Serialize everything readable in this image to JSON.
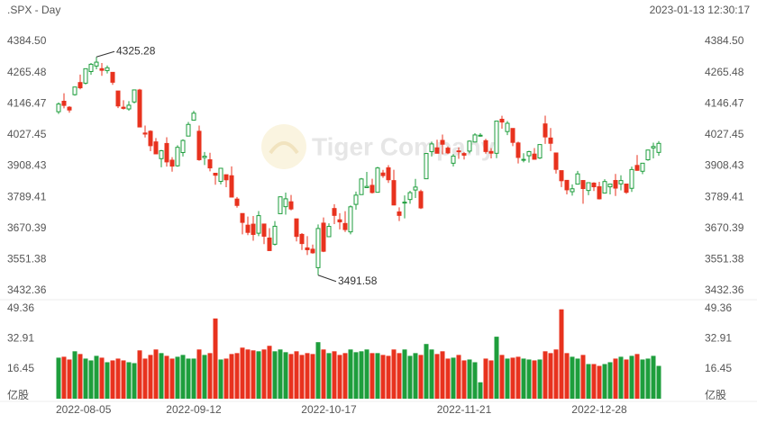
{
  "chart_data": {
    "type": "candlestick",
    "title": ".SPX - Day",
    "timestamp": "2023-01-13 12:30:17",
    "watermark": "Tiger Company",
    "volume_unit": "亿股",
    "up_color": "#1e9e3c",
    "down_color": "#e8321e",
    "categories": [
      "2022-08-05",
      null,
      null,
      null,
      null,
      null,
      null,
      null,
      null,
      null,
      null,
      null,
      null,
      null,
      null,
      null,
      null,
      null,
      null,
      null,
      null,
      null,
      null,
      null,
      null,
      "2022-09-12",
      null,
      null,
      null,
      null,
      null,
      null,
      null,
      null,
      null,
      null,
      null,
      null,
      null,
      null,
      null,
      null,
      null,
      null,
      null,
      null,
      null,
      null,
      null,
      null,
      "2022-10-17",
      null,
      null,
      null,
      null,
      null,
      null,
      null,
      null,
      null,
      null,
      null,
      null,
      null,
      null,
      null,
      null,
      null,
      null,
      null,
      null,
      null,
      null,
      null,
      null,
      "2022-11-21",
      null,
      null,
      null,
      null,
      null,
      null,
      null,
      null,
      null,
      null,
      null,
      null,
      null,
      null,
      null,
      null,
      null,
      null,
      null,
      null,
      null,
      null,
      null,
      null,
      "2022-12-28",
      null,
      null,
      null,
      null,
      null,
      null,
      null,
      null,
      null,
      null,
      null
    ],
    "open": [
      4115.87,
      4155.93,
      4133.11,
      4181.02,
      4227.4,
      4225.02,
      4269.37,
      4290.46,
      4280.4,
      4273.13,
      4266.31,
      4195.08,
      4133.09,
      4126.55,
      4153.26,
      4198.74,
      4034.58,
      4041.25,
      4000.67,
      3936.73,
      3994.66,
      3930.89,
      3909.43,
      3959.94,
      4022.94,
      4083.67,
      4041.25,
      3940.73,
      3932.41,
      3880.95,
      3849.91,
      3875.23,
      3871.4,
      3782.36,
      3727.14,
      3682.72,
      3686.44,
      3651.94,
      3687.01,
      3633.48,
      3609.78,
      3726.46,
      3753.25,
      3771.97,
      3706.74,
      3647.51,
      3595.86,
      3590.83,
      3520.37,
      3690.41,
      3638.65,
      3746.26,
      3703.11,
      3689.05,
      3657.1,
      3762.01,
      3799.44,
      3825.97,
      3834.69,
      3808.26,
      3881.85,
      3901.79,
      3852.9,
      3733.25,
      3766.98,
      3780.71,
      3817.02,
      3810.94,
      3859.89,
      3963.72,
      3977.97,
      4006.41,
      3976.82,
      3919.26,
      3966.39,
      3956.23,
      3965.51,
      4000.3,
      4023.34,
      4005.36,
      3964.19,
      3957.18,
      4087.14,
      4040.17,
      4052.02,
      3996.63,
      3933.28,
      3947.79,
      3954.17,
      3939.29,
      4069.38,
      4015.54,
      3958.37,
      3890.91,
      3853.79,
      3810.47,
      3839.49,
      3853.26,
      3815.11,
      3843.34,
      3829.56,
      3805.45,
      3829.06,
      3853.29,
      3840.36,
      3839.74,
      3823.37,
      3910.82,
      3888.57,
      3932.35,
      3977.57,
      3960.6
    ],
    "high": [
      4151.58,
      4186.62,
      4137.3,
      4211.03,
      4257.91,
      4280.47,
      4301.79,
      4325.28,
      4302.18,
      4292.53,
      4266.31,
      4195.08,
      4159.77,
      4156.56,
      4200.54,
      4203.04,
      4062.99,
      4044.98,
      4015.37,
      3970.23,
      4018.43,
      3942.55,
      3987.89,
      4010.5,
      4076.81,
      4119.28,
      4062.99,
      3961.94,
      3959.14,
      3880.95,
      3900.45,
      3876.01,
      3907.07,
      3790.44,
      3727.14,
      3715.67,
      3717.53,
      3736.74,
      3687.01,
      3671.44,
      3698.35,
      3791.92,
      3806.91,
      3797.93,
      3706.74,
      3652.17,
      3640.66,
      3608.34,
      3685.41,
      3712.0,
      3689.73,
      3762.79,
      3728.58,
      3736.0,
      3757.89,
      3810.74,
      3862.85,
      3886.15,
      3859.95,
      3905.42,
      3893.73,
      3911.79,
      3894.44,
      3750.59,
      3796.34,
      3813.95,
      3859.4,
      3818.2,
      3958.33,
      4001.48,
      4008.97,
      4028.84,
      3983.09,
      3954.33,
      3979.89,
      3962.0,
      4005.88,
      4033.78,
      4034.02,
      4012.27,
      3976.77,
      4080.11,
      4100.51,
      4080.48,
      4052.45,
      4001.51,
      3957.57,
      3966.67,
      3977.02,
      3990.71,
      4100.96,
      4053.76,
      3958.37,
      3890.91,
      3854.86,
      3838.24,
      3889.82,
      3853.26,
      3845.8,
      3846.65,
      3848.32,
      3858.19,
      3839.85,
      3878.46,
      3873.16,
      3839.74,
      3906.19,
      3950.57,
      3919.83,
      3970.07,
      3997.76,
      4003.95
    ],
    "low": [
      4107.31,
      4128.97,
      4112.09,
      4177.26,
      4201.41,
      4219.78,
      4256.9,
      4277.77,
      4253.08,
      4261.98,
      4218.7,
      4129.86,
      4124.03,
      4119.97,
      4147.59,
      4057.66,
      4017.42,
      3965.21,
      3954.53,
      3903.65,
      3906.21,
      3886.75,
      3906.03,
      3944.81,
      4022.94,
      4083.67,
      3928.47,
      3912.48,
      3888.28,
      3837.08,
      3838.5,
      3827.54,
      3789.49,
      3749.45,
      3647.47,
      3644.76,
      3623.29,
      3640.61,
      3610.4,
      3584.13,
      3604.93,
      3726.46,
      3722.66,
      3739.22,
      3620.73,
      3588.1,
      3568.45,
      3573.86,
      3491.58,
      3579.68,
      3638.65,
      3686.53,
      3666.51,
      3656.44,
      3647.42,
      3741.65,
      3799.44,
      3824.07,
      3803.79,
      3808.26,
      3863.18,
      3843.8,
      3758.68,
      3698.15,
      3708.84,
      3764.7,
      3786.28,
      3744.22,
      3859.89,
      3944.82,
      3956.4,
      3953.17,
      3954.34,
      3906.54,
      3935.98,
      3933.34,
      3956.88,
      3998.66,
      4020.76,
      3955.77,
      3937.65,
      3938.58,
      4050.87,
      4026.63,
      3984.49,
      3918.39,
      3922.68,
      3921.94,
      3933.04,
      3935.3,
      3993.03,
      3965.65,
      3879.45,
      3827.91,
      3800.04,
      3795.62,
      3839.49,
      3764.49,
      3797.01,
      3813.22,
      3780.78,
      3805.45,
      3800.34,
      3794.33,
      3815.77,
      3802.42,
      3809.56,
      3890.42,
      3877.29,
      3928.54,
      3937.56,
      3947.67
    ],
    "close": [
      4145.19,
      4140.06,
      4122.47,
      4210.24,
      4207.27,
      4280.15,
      4297.14,
      4305.2,
      4274.04,
      4283.74,
      4228.48,
      4137.99,
      4128.73,
      4140.77,
      4199.12,
      4057.66,
      4030.61,
      3986.16,
      3955.0,
      3966.85,
      3924.26,
      3908.19,
      3979.87,
      4006.18,
      4067.36,
      4110.41,
      3932.69,
      3946.01,
      3901.35,
      3873.33,
      3899.89,
      3855.93,
      3789.93,
      3757.99,
      3693.23,
      3655.04,
      3647.29,
      3719.04,
      3640.47,
      3585.62,
      3678.43,
      3790.93,
      3783.28,
      3744.52,
      3639.66,
      3612.39,
      3588.84,
      3577.03,
      3669.91,
      3583.07,
      3677.95,
      3719.98,
      3695.16,
      3665.78,
      3752.75,
      3797.34,
      3859.11,
      3830.6,
      3807.3,
      3901.06,
      3871.98,
      3856.1,
      3759.69,
      3719.89,
      3770.55,
      3806.8,
      3828.11,
      3748.57,
      3956.37,
      3992.93,
      3957.25,
      3991.73,
      3958.79,
      3946.56,
      3965.34,
      3949.94,
      4003.58,
      4027.26,
      4026.12,
      3963.94,
      3957.63,
      4080.11,
      4076.57,
      4071.7,
      3998.84,
      3941.26,
      3933.92,
      3963.51,
      3934.38,
      3990.56,
      4019.65,
      3995.32,
      3895.75,
      3852.36,
      3817.66,
      3821.62,
      3878.44,
      3822.39,
      3844.82,
      3829.25,
      3783.22,
      3849.28,
      3839.5,
      3824.14,
      3852.97,
      3808.1,
      3895.08,
      3892.09,
      3919.25,
      3969.61,
      3983.17,
      3995.0
    ],
    "volume": [
      22.5,
      23,
      21.5,
      26,
      24.5,
      22,
      21,
      23.5,
      22.5,
      20,
      21,
      22,
      21,
      20,
      19.5,
      26.5,
      22,
      24,
      27,
      25,
      23.5,
      22,
      23,
      24,
      22,
      22,
      27,
      24,
      25,
      44,
      21.5,
      22,
      24.5,
      25,
      28,
      27,
      26.5,
      26,
      27,
      29,
      26,
      27,
      25.5,
      24.5,
      26,
      24,
      25,
      24.5,
      31,
      27,
      25,
      26,
      24,
      25,
      27,
      25.5,
      26,
      27,
      25,
      25,
      24,
      23.5,
      27,
      25,
      27,
      23.5,
      25,
      24,
      30,
      27,
      24.5,
      26,
      22,
      22.5,
      24,
      21,
      21.5,
      20,
      9,
      22,
      21,
      34,
      24,
      22,
      22.5,
      23,
      22,
      21.5,
      21,
      21.5,
      26,
      25,
      27,
      49,
      25,
      23,
      22,
      24,
      19,
      19,
      18,
      19,
      20,
      22,
      23,
      21.5,
      23.5,
      24.5,
      21.5,
      22,
      23.5,
      18
    ],
    "ylim": [
      3432.36,
      4384.5
    ],
    "yticks": [
      {
        "value": 4384.5,
        "label": "4384.50"
      },
      4265.48,
      4146.47,
      4027.45,
      3908.43,
      3789.41,
      3670.39,
      3551.38,
      3432.36
    ],
    "vlim": [
      0,
      49.36
    ],
    "vticks": [
      49.36,
      32.91,
      16.45
    ]
  }
}
